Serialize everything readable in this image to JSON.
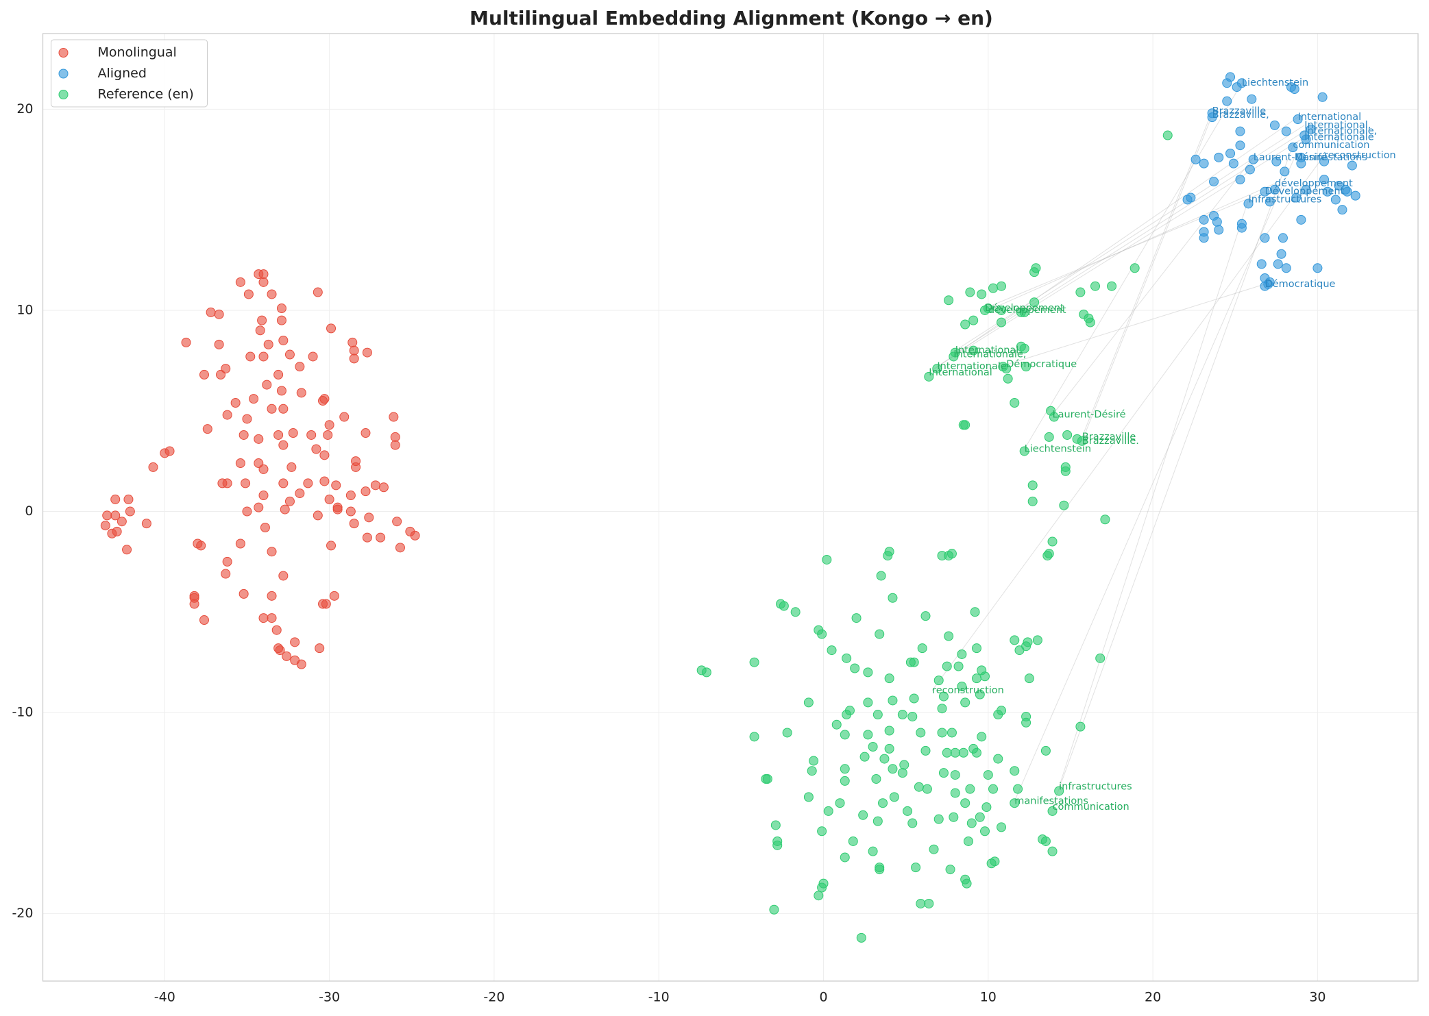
{
  "chart_data": {
    "type": "scatter",
    "title": "Multilingual Embedding Alignment (Kongo → en)",
    "xlim": [
      -47.4,
      36.1
    ],
    "ylim": [
      -23.35,
      23.76
    ],
    "xticks": [
      -40,
      -30,
      -20,
      -10,
      0,
      10,
      20,
      30
    ],
    "yticks": [
      -20,
      -10,
      0,
      10,
      20
    ],
    "grid": true,
    "legend": "upper left",
    "series": [
      {
        "name": "Monolingual",
        "color": "#e74c3c",
        "x": [
          -43.0,
          -42.2,
          -43.5,
          -43.0,
          -42.6,
          -42.1,
          -41.1,
          -43.6,
          -43.2,
          -42.9,
          -42.3,
          -40.7,
          -40.0,
          -39.7,
          -38.7,
          -37.2,
          -36.7,
          -36.7,
          -35.4,
          -34.9,
          -34.3,
          -34.0,
          -34.0,
          -33.5,
          -32.9,
          -30.7,
          -29.9,
          -28.6,
          -28.5,
          -27.7,
          -28.5,
          -37.6,
          -36.6,
          -36.3,
          -34.8,
          -34.0,
          -33.7,
          -32.8,
          -32.4,
          -31.8,
          -31.0,
          -33.1,
          -34.1,
          -32.9,
          -34.2,
          -35.7,
          -34.6,
          -33.8,
          -32.9,
          -31.7,
          -30.3,
          -30.4,
          -37.4,
          -36.2,
          -35.0,
          -33.5,
          -32.8,
          -29.1,
          -26.1,
          -35.2,
          -34.3,
          -33.1,
          -32.2,
          -31.1,
          -30.0,
          -30.1,
          -27.8,
          -26.0,
          -26.0,
          -32.8,
          -30.8,
          -30.3,
          -35.4,
          -34.3,
          -34.0,
          -32.3,
          -28.4,
          -28.4,
          -36.5,
          -36.2,
          -35.1,
          -32.8,
          -31.3,
          -30.3,
          -29.6,
          -27.2,
          -26.7,
          -27.8,
          -31.8,
          -34.0,
          -32.4,
          -30.0,
          -28.7,
          -34.3,
          -32.7,
          -29.5,
          -29.5,
          -35.0,
          -28.7,
          -30.7,
          -27.6,
          -25.9,
          -28.5,
          -33.9,
          -25.1,
          -24.8,
          -27.7,
          -26.9,
          -35.4,
          -38.0,
          -37.8,
          -29.9,
          -25.7,
          -33.5,
          -36.2,
          -36.3,
          -32.8,
          -38.2,
          -38.2,
          -38.2,
          -35.2,
          -33.5,
          -29.7,
          -30.4,
          -30.2,
          -37.6,
          -34.0,
          -33.5,
          -33.2,
          -33.1,
          -33.0,
          -32.1,
          -30.6,
          -32.6,
          -32.1,
          -31.7
        ],
        "values": [
          0.6,
          0.6,
          -0.2,
          -0.2,
          -0.5,
          0.0,
          -0.6,
          -0.7,
          -1.1,
          -1.0,
          -1.9,
          2.2,
          2.9,
          3.0,
          8.4,
          9.9,
          9.8,
          8.3,
          11.4,
          10.8,
          11.8,
          11.8,
          11.4,
          10.8,
          10.1,
          10.9,
          9.1,
          8.4,
          8.0,
          7.9,
          7.6,
          6.8,
          6.8,
          7.1,
          7.7,
          7.7,
          8.3,
          8.5,
          7.8,
          7.2,
          7.7,
          6.8,
          9.5,
          9.5,
          9.0,
          5.4,
          5.6,
          6.3,
          6.0,
          5.9,
          5.6,
          5.5,
          4.1,
          4.8,
          4.6,
          5.1,
          5.1,
          4.7,
          4.7,
          3.8,
          3.6,
          3.8,
          3.9,
          3.8,
          4.3,
          3.8,
          3.9,
          3.7,
          3.3,
          3.3,
          3.1,
          2.8,
          2.4,
          2.4,
          2.1,
          2.2,
          2.5,
          2.2,
          1.4,
          1.4,
          1.4,
          1.4,
          1.4,
          1.5,
          1.3,
          1.3,
          1.2,
          1.0,
          0.9,
          0.8,
          0.5,
          0.6,
          0.8,
          0.2,
          0.1,
          0.2,
          0.1,
          0.0,
          0.0,
          -0.2,
          -0.3,
          -0.5,
          -0.6,
          -0.8,
          -1.0,
          -1.2,
          -1.3,
          -1.3,
          -1.6,
          -1.6,
          -1.7,
          -1.7,
          -1.8,
          -2.0,
          -2.5,
          -3.1,
          -3.2,
          -4.2,
          -4.3,
          -4.6,
          -4.1,
          -4.2,
          -4.2,
          -4.6,
          -4.6,
          -5.4,
          -5.3,
          -5.3,
          -5.9,
          -6.8,
          -6.9,
          -6.5,
          -6.8,
          -7.2,
          -7.4,
          -7.6
        ]
      },
      {
        "name": "Aligned",
        "color": "#3498db",
        "x": [
          24.7,
          24.5,
          25.4,
          25.1,
          28.4,
          28.6,
          26.0,
          24.5,
          30.3,
          23.6,
          23.6,
          28.8,
          27.4,
          28.1,
          25.3,
          29.2,
          29.3,
          29.6,
          25.3,
          28.5,
          24.7,
          24.0,
          22.6,
          23.1,
          24.9,
          26.1,
          27.5,
          29.0,
          29.0,
          30.4,
          32.1,
          25.9,
          28.0,
          30.4,
          25.3,
          23.7,
          31.3,
          29.3,
          27.4,
          26.8,
          30.6,
          31.7,
          31.8,
          32.3,
          31.1,
          22.3,
          22.1,
          25.8,
          27.1,
          28.7,
          31.5,
          23.7,
          29.0,
          23.1,
          23.9,
          25.4,
          25.4,
          24.0,
          23.1,
          23.1,
          26.8,
          27.9,
          27.8,
          26.6,
          27.6,
          28.1,
          30.0,
          26.8,
          27.1,
          26.8,
          27.0
        ],
        "values": [
          21.6,
          21.3,
          21.3,
          21.1,
          21.1,
          21.0,
          20.5,
          20.4,
          20.6,
          19.8,
          19.6,
          19.5,
          19.2,
          18.9,
          18.9,
          18.7,
          18.5,
          19.0,
          18.2,
          18.1,
          17.8,
          17.6,
          17.5,
          17.3,
          17.3,
          17.5,
          17.4,
          17.6,
          17.3,
          17.4,
          17.2,
          17.0,
          16.9,
          16.5,
          16.5,
          16.4,
          16.2,
          16.0,
          16.0,
          15.9,
          15.9,
          16.0,
          15.9,
          15.7,
          15.5,
          15.6,
          15.5,
          15.3,
          15.4,
          15.6,
          15.0,
          14.7,
          14.5,
          14.5,
          14.4,
          14.3,
          14.1,
          14.0,
          13.9,
          13.6,
          13.6,
          13.6,
          12.8,
          12.3,
          12.3,
          12.1,
          12.1,
          11.6,
          11.4,
          11.2,
          11.3
        ]
      },
      {
        "name": "Reference (en)",
        "color": "#2ecc71",
        "x": [
          20.9,
          12.8,
          12.9,
          18.9,
          17.5,
          16.5,
          15.6,
          8.9,
          9.6,
          10.3,
          10.8,
          7.6,
          12.8,
          9.8,
          10.0,
          10.8,
          12.0,
          12.2,
          15.8,
          16.1,
          16.2,
          9.1,
          8.6,
          10.8,
          12.0,
          12.2,
          9.1,
          8.0,
          7.9,
          10.9,
          11.1,
          12.3,
          6.9,
          6.4,
          11.2,
          11.6,
          13.8,
          14.0,
          8.5,
          8.6,
          13.7,
          14.8,
          15.4,
          15.7,
          12.2,
          14.7,
          14.7,
          12.7,
          12.7,
          14.6,
          17.1,
          13.9,
          13.6,
          13.7,
          0.2,
          4.0,
          3.9,
          7.2,
          7.6,
          7.8,
          3.5,
          4.2,
          -2.6,
          -2.4,
          -1.7,
          2.0,
          6.2,
          9.2,
          -0.3,
          -0.1,
          3.4,
          7.6,
          13.0,
          11.6,
          12.4,
          12.3,
          6.0,
          9.3,
          0.5,
          11.9,
          8.4,
          5.3,
          5.5,
          1.4,
          -4.2,
          16.8,
          1.9,
          7.5,
          8.2,
          2.7,
          -7.4,
          -7.1,
          9.6,
          9.8,
          9.3,
          12.5,
          4.0,
          7.0,
          8.4,
          9.5,
          7.3,
          5.5,
          8.6,
          4.2,
          2.7,
          -0.9,
          7.2,
          1.6,
          1.4,
          3.3,
          4.8,
          5.4,
          10.8,
          10.6,
          12.3,
          12.3,
          15.6,
          0.8,
          -2.2,
          -4.2,
          1.3,
          4.0,
          2.7,
          5.9,
          7.2,
          7.8,
          9.6,
          3.0,
          4.0,
          6.2,
          7.5,
          8.0,
          8.5,
          9.1,
          9.3,
          13.5,
          -0.6,
          2.5,
          3.7,
          4.9,
          10.6,
          -0.7,
          1.3,
          4.2,
          4.8,
          7.3,
          8.0,
          10.0,
          11.6,
          -3.4,
          -3.5,
          3.2,
          1.3,
          5.8,
          6.3,
          8.9,
          10.3,
          11.8,
          14.3,
          8.0,
          -0.9,
          4.3,
          3.6,
          1.0,
          8.6,
          11.6,
          9.9,
          0.3,
          5.1,
          13.9,
          7.9,
          9.5,
          2.4,
          7.0,
          3.3,
          5.4,
          -2.9,
          9.0,
          10.8,
          9.8,
          -0.1,
          8.8,
          1.8,
          -2.8,
          -2.8,
          13.3,
          13.5,
          6.7,
          3.0,
          13.9,
          1.3,
          10.4,
          10.2,
          3.4,
          3.4,
          5.6,
          7.7,
          8.6,
          8.7,
          0.0,
          -0.1,
          -0.3,
          5.9,
          6.4,
          -3.0,
          2.3
        ],
        "values": [
          18.7,
          11.9,
          12.1,
          12.1,
          11.2,
          11.2,
          10.9,
          10.9,
          10.8,
          11.1,
          11.2,
          10.5,
          10.4,
          10.0,
          10.1,
          10.0,
          9.9,
          9.9,
          9.8,
          9.6,
          9.4,
          9.5,
          9.3,
          9.4,
          8.2,
          8.1,
          8.0,
          7.9,
          7.7,
          7.2,
          7.1,
          7.2,
          7.1,
          6.7,
          6.6,
          5.4,
          5.0,
          4.7,
          4.3,
          4.3,
          3.7,
          3.8,
          3.6,
          3.5,
          3.0,
          2.2,
          2.0,
          1.3,
          0.5,
          0.3,
          -0.4,
          -1.5,
          -2.2,
          -2.1,
          -2.4,
          -2.0,
          -2.2,
          -2.2,
          -2.2,
          -2.1,
          -3.2,
          -4.3,
          -4.6,
          -4.7,
          -5.0,
          -5.3,
          -5.2,
          -5.0,
          -5.9,
          -6.1,
          -6.1,
          -6.2,
          -6.4,
          -6.4,
          -6.5,
          -6.7,
          -6.8,
          -6.8,
          -6.9,
          -6.9,
          -7.1,
          -7.5,
          -7.5,
          -7.3,
          -7.5,
          -7.3,
          -7.8,
          -7.7,
          -7.7,
          -8.0,
          -7.9,
          -8.0,
          -7.9,
          -8.2,
          -8.3,
          -8.3,
          -8.3,
          -8.4,
          -8.7,
          -9.1,
          -9.2,
          -9.3,
          -9.5,
          -9.4,
          -9.5,
          -9.5,
          -9.8,
          -9.9,
          -10.1,
          -10.1,
          -10.1,
          -10.2,
          -9.9,
          -10.1,
          -10.2,
          -10.5,
          -10.7,
          -10.6,
          -11.0,
          -11.2,
          -11.1,
          -10.9,
          -11.1,
          -11.0,
          -11.0,
          -11.0,
          -11.2,
          -11.7,
          -11.8,
          -11.9,
          -12.0,
          -12.0,
          -12.0,
          -11.8,
          -12.0,
          -11.9,
          -12.4,
          -12.2,
          -12.3,
          -12.6,
          -12.3,
          -12.9,
          -12.8,
          -12.8,
          -13.0,
          -13.0,
          -13.1,
          -13.1,
          -12.9,
          -13.3,
          -13.3,
          -13.3,
          -13.4,
          -13.7,
          -13.8,
          -13.8,
          -13.8,
          -13.8,
          -13.9,
          -14.0,
          -14.2,
          -14.2,
          -14.5,
          -14.5,
          -14.5,
          -14.5,
          -14.7,
          -14.9,
          -14.9,
          -14.9,
          -15.2,
          -15.2,
          -15.1,
          -15.3,
          -15.4,
          -15.5,
          -15.6,
          -15.5,
          -15.7,
          -15.9,
          -15.9,
          -16.4,
          -16.4,
          -16.4,
          -16.6,
          -16.3,
          -16.4,
          -16.8,
          -16.9,
          -16.9,
          -17.2,
          -17.4,
          -17.5,
          -17.7,
          -17.8,
          -17.7,
          -17.8,
          -18.3,
          -18.5,
          -18.5,
          -18.7,
          -19.1,
          -19.5,
          -19.5,
          -19.8,
          -21.2
        ]
      }
    ],
    "annotations": [
      {
        "text": "Liechtenstein",
        "x": 25.4,
        "y": 21.3,
        "color": "#2e86c1"
      },
      {
        "text": "Brazzaville",
        "x": 23.6,
        "y": 19.9,
        "color": "#2e86c1"
      },
      {
        "text": "Brazzaville,",
        "x": 23.6,
        "y": 19.7,
        "color": "#2e86c1"
      },
      {
        "text": "International",
        "x": 28.8,
        "y": 19.6,
        "color": "#2e86c1"
      },
      {
        "text": "International,",
        "x": 29.2,
        "y": 19.2,
        "color": "#2e86c1"
      },
      {
        "text": "Internationale,",
        "x": 29.2,
        "y": 18.9,
        "color": "#2e86c1"
      },
      {
        "text": "Internationale",
        "x": 29.2,
        "y": 18.6,
        "color": "#2e86c1"
      },
      {
        "text": "communication",
        "x": 28.5,
        "y": 18.2,
        "color": "#2e86c1"
      },
      {
        "text": "Laurent-Désiré",
        "x": 26.1,
        "y": 17.6,
        "color": "#2e86c1"
      },
      {
        "text": "Manifestations",
        "x": 28.6,
        "y": 17.6,
        "color": "#2e86c1"
      },
      {
        "text": "reconstruction",
        "x": 30.4,
        "y": 17.7,
        "color": "#2e86c1"
      },
      {
        "text": "développement",
        "x": 27.4,
        "y": 16.3,
        "color": "#2e86c1"
      },
      {
        "text": "Développement",
        "x": 26.8,
        "y": 15.9,
        "color": "#2e86c1"
      },
      {
        "text": "Infrastructures",
        "x": 25.8,
        "y": 15.5,
        "color": "#2e86c1"
      },
      {
        "text": "Démocratique",
        "x": 26.8,
        "y": 11.3,
        "color": "#2e86c1"
      },
      {
        "text": "Développement",
        "x": 9.8,
        "y": 10.1,
        "color": "#27ae60"
      },
      {
        "text": "développement",
        "x": 10.0,
        "y": 10.0,
        "color": "#27ae60"
      },
      {
        "text": "International,",
        "x": 8.0,
        "y": 8.0,
        "color": "#27ae60"
      },
      {
        "text": "Internationale,",
        "x": 7.9,
        "y": 7.8,
        "color": "#27ae60"
      },
      {
        "text": "Internationale",
        "x": 6.9,
        "y": 7.2,
        "color": "#27ae60"
      },
      {
        "text": "Démocratique",
        "x": 11.1,
        "y": 7.3,
        "color": "#27ae60"
      },
      {
        "text": "International",
        "x": 6.4,
        "y": 6.9,
        "color": "#27ae60"
      },
      {
        "text": "Laurent-Désiré",
        "x": 13.9,
        "y": 4.8,
        "color": "#27ae60"
      },
      {
        "text": "Brazzaville",
        "x": 15.7,
        "y": 3.7,
        "color": "#27ae60"
      },
      {
        "text": "Brazzaville.",
        "x": 15.7,
        "y": 3.5,
        "color": "#27ae60"
      },
      {
        "text": "Liechtenstein",
        "x": 12.2,
        "y": 3.1,
        "color": "#27ae60"
      },
      {
        "text": "reconstruction",
        "x": 6.6,
        "y": -8.9,
        "color": "#27ae60"
      },
      {
        "text": "infrastructures",
        "x": 14.3,
        "y": -13.7,
        "color": "#27ae60"
      },
      {
        "text": "manifestations",
        "x": 11.6,
        "y": -14.4,
        "color": "#27ae60"
      },
      {
        "text": "communication",
        "x": 13.9,
        "y": -14.7,
        "color": "#27ae60"
      }
    ],
    "links": [
      {
        "x": [
          12.2,
          25.4
        ],
        "y": [
          3.1,
          21.3
        ]
      },
      {
        "x": [
          15.7,
          23.6
        ],
        "y": [
          3.7,
          19.9
        ]
      },
      {
        "x": [
          15.7,
          23.6
        ],
        "y": [
          3.5,
          19.7
        ]
      },
      {
        "x": [
          6.4,
          28.8
        ],
        "y": [
          6.9,
          19.6
        ]
      },
      {
        "x": [
          8.0,
          29.2
        ],
        "y": [
          8.0,
          19.2
        ]
      },
      {
        "x": [
          7.9,
          29.2
        ],
        "y": [
          7.8,
          18.9
        ]
      },
      {
        "x": [
          6.9,
          29.2
        ],
        "y": [
          7.2,
          18.6
        ]
      },
      {
        "x": [
          13.9,
          28.5
        ],
        "y": [
          -14.7,
          18.2
        ]
      },
      {
        "x": [
          13.9,
          26.1
        ],
        "y": [
          4.8,
          17.6
        ]
      },
      {
        "x": [
          11.6,
          28.6
        ],
        "y": [
          -14.4,
          17.6
        ]
      },
      {
        "x": [
          6.6,
          30.4
        ],
        "y": [
          -8.9,
          17.7
        ]
      },
      {
        "x": [
          10.0,
          27.4
        ],
        "y": [
          10.0,
          16.3
        ]
      },
      {
        "x": [
          9.8,
          26.8
        ],
        "y": [
          10.1,
          15.9
        ]
      },
      {
        "x": [
          14.3,
          25.8
        ],
        "y": [
          -13.7,
          15.5
        ]
      },
      {
        "x": [
          11.1,
          26.8
        ],
        "y": [
          7.3,
          11.3
        ]
      }
    ]
  }
}
